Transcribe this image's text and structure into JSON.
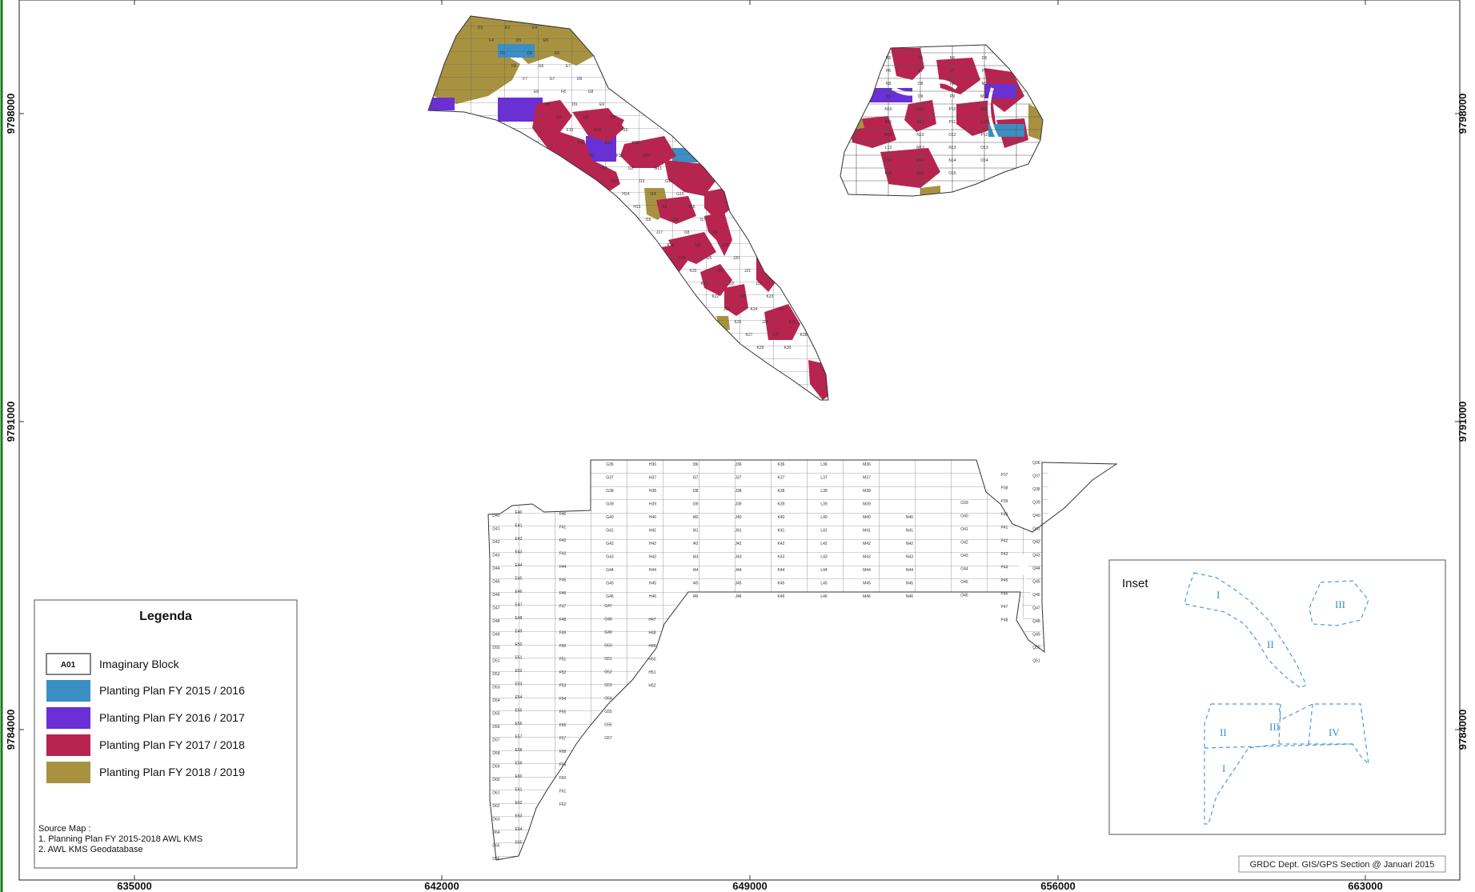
{
  "colors": {
    "fy2015_2016": "#3a8fc4",
    "fy2016_2017": "#6a2fd6",
    "fy2017_2018": "#b8244f",
    "fy2018_2019": "#a89240",
    "inset_line": "#4a9ae0",
    "border_green": "#1a7a1a"
  },
  "axes": {
    "x_ticks": [
      "635000",
      "642000",
      "649000",
      "656000",
      "663000"
    ],
    "y_ticks": [
      "9798000",
      "9791000",
      "9784000"
    ]
  },
  "legend": {
    "title": "Legenda",
    "sample_block": "A01",
    "items": [
      {
        "label": "Imaginary Block"
      },
      {
        "label": "Planting Plan FY  2015 / 2016"
      },
      {
        "label": "Planting Plan FY  2016 / 2017"
      },
      {
        "label": "Planting Plan FY  2017 / 2018"
      },
      {
        "label": "Planting Plan FY  2018 / 2019"
      }
    ],
    "source_title": "Source Map :",
    "sources": [
      "1. Planning Plan FY 2015-2018 AWL KMS",
      "2. AWL KMS Geodatabase"
    ]
  },
  "inset": {
    "title": "Inset",
    "labels": [
      "I",
      "II",
      "III",
      "II",
      "III",
      "IV",
      "I"
    ]
  },
  "credit": "GRDC Dept. GIS/GPS Section @ Januari 2015",
  "block_labels": {
    "north_west": [
      "D3",
      "E3",
      "E4",
      "F4",
      "D5",
      "E5",
      "F5",
      "D6",
      "E6",
      "F6",
      "G6",
      "E7",
      "F7",
      "G7",
      "D8",
      "E8",
      "F8",
      "G8",
      "H8",
      "D9",
      "E9",
      "F9",
      "G9",
      "H9",
      "F10",
      "G10",
      "H10",
      "F11",
      "G11",
      "H11",
      "I11",
      "F12",
      "G12",
      "H12",
      "I12",
      "G13",
      "H13",
      "I13",
      "G14",
      "H14",
      "I14",
      "G15",
      "H15",
      "I15",
      "H16",
      "I16",
      "J16",
      "I17",
      "J17",
      "I18",
      "J18",
      "K18",
      "I19",
      "J19",
      "K19",
      "I20",
      "J20",
      "K20",
      "I21",
      "J21",
      "K21",
      "I22",
      "J22",
      "K22",
      "J23",
      "K23",
      "J24",
      "K24",
      "J25",
      "K25",
      "J26",
      "K26",
      "K27",
      "L27",
      "K28",
      "K29",
      "K30"
    ],
    "north_east": [
      "N5",
      "O5",
      "N6",
      "O6",
      "P6",
      "N7",
      "O7",
      "P7",
      "N8",
      "O8",
      "P8",
      "M9",
      "N9",
      "O9",
      "P9",
      "M10",
      "N10",
      "O10",
      "P10",
      "M11",
      "N11",
      "O11",
      "P11",
      "L12",
      "M12",
      "N12",
      "O12",
      "P12",
      "L13",
      "M13",
      "N13",
      "O13",
      "P13",
      "M14",
      "N14",
      "O14",
      "P14",
      "N15",
      "O15"
    ],
    "south_rows": [
      [
        "G36",
        "H36",
        "I36",
        "J36",
        "K36",
        "L36",
        "M36"
      ],
      [
        "G37",
        "H37",
        "I37",
        "J37",
        "K37",
        "L37",
        "M37"
      ],
      [
        "G38",
        "H38",
        "I38",
        "J38",
        "K38",
        "L38",
        "M38"
      ],
      [
        "G39",
        "H39",
        "I39",
        "J39",
        "K39",
        "L39",
        "M39"
      ],
      [
        "G40",
        "H40",
        "I40",
        "J40",
        "K40",
        "L40",
        "M40",
        "N40"
      ],
      [
        "G41",
        "H41",
        "I41",
        "J41",
        "K41",
        "L41",
        "M41",
        "N41"
      ],
      [
        "G42",
        "H42",
        "I42",
        "J42",
        "K42",
        "L42",
        "M42",
        "N42"
      ],
      [
        "G43",
        "H43",
        "I43",
        "J43",
        "K43",
        "L43",
        "M43",
        "N43"
      ],
      [
        "G44",
        "H44",
        "I44",
        "J44",
        "K44",
        "L44",
        "M44",
        "N44"
      ],
      [
        "G45",
        "H45",
        "I45",
        "J45",
        "K45",
        "L45",
        "M45",
        "N45"
      ],
      [
        "G46",
        "H46",
        "I46",
        "J46",
        "K46",
        "L46",
        "M46",
        "N46"
      ]
    ],
    "south_left_cols": {
      "D": [
        "D40",
        "D41",
        "D42",
        "D43",
        "D44",
        "D45",
        "D46",
        "D47",
        "D48",
        "D49",
        "D50",
        "D51",
        "D52",
        "D53",
        "D54",
        "D55",
        "D56",
        "D57",
        "D58",
        "D59",
        "D60",
        "D61",
        "D62",
        "D63",
        "D64",
        "D65",
        "D66"
      ],
      "E": [
        "E40",
        "E41",
        "E42",
        "E43",
        "E44",
        "E45",
        "E46",
        "E47",
        "E48",
        "E49",
        "E50",
        "E51",
        "E52",
        "E53",
        "E54",
        "E55",
        "E56",
        "E57",
        "E58",
        "E59",
        "E60",
        "E61",
        "E62",
        "E63",
        "E64",
        "E65"
      ],
      "F": [
        "F40",
        "F41",
        "F42",
        "F43",
        "F44",
        "F45",
        "F46",
        "F47",
        "F48",
        "F49",
        "F50",
        "F51",
        "F52",
        "F53",
        "F54",
        "F55",
        "F56",
        "F57",
        "F58",
        "F59",
        "F60",
        "F61",
        "F62"
      ],
      "G": [
        "G47",
        "G48",
        "G49",
        "G50",
        "G51",
        "G52",
        "G53",
        "G54",
        "G55",
        "G56",
        "G57"
      ],
      "H": [
        "H47",
        "H48",
        "H49",
        "H50",
        "H51",
        "H52"
      ]
    },
    "south_right": {
      "O": [
        "O39",
        "O40",
        "O41",
        "O42",
        "O43",
        "O44",
        "O45",
        "O46"
      ],
      "P": [
        "P37",
        "P38",
        "P39",
        "P40",
        "P41",
        "P42",
        "P43",
        "P44",
        "P45",
        "P46",
        "P47",
        "P48"
      ],
      "Q": [
        "Q36",
        "Q37",
        "Q38",
        "Q39",
        "Q40",
        "Q41",
        "Q42",
        "Q43",
        "Q44",
        "Q45",
        "Q46",
        "Q47",
        "Q48",
        "Q49",
        "Q50",
        "Q51"
      ]
    }
  }
}
